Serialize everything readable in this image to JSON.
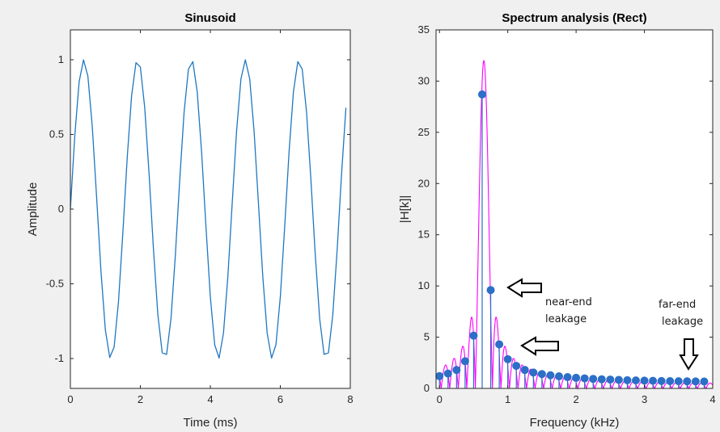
{
  "colors": {
    "figure_bg": "#f0f0f0",
    "axes_bg": "#ffffff",
    "axis": "#262626",
    "sinusoid_line": "#1f77c0",
    "dtft_curve": "#ff00ff",
    "dft_points": "#2c6fc7"
  },
  "chart_data": [
    {
      "type": "line",
      "title": "Sinusoid",
      "xlabel": "Time (ms)",
      "ylabel": "Amplitude",
      "xlim": [
        0,
        8
      ],
      "ylim": [
        -1.2,
        1.2
      ],
      "xticks": [
        0,
        2,
        4,
        6,
        8
      ],
      "xtick_labels": [
        "0",
        "2",
        "4",
        "6",
        "8"
      ],
      "yticks": [
        -1,
        -0.5,
        0,
        0.5,
        1
      ],
      "ytick_labels": [
        "-1",
        "-0.5",
        "0",
        "0.5",
        "1"
      ],
      "grid": false,
      "series": [
        {
          "signal": "sine",
          "frequency_khz": 0.65,
          "amplitude": 1,
          "sample_spacing_ms": 0.125,
          "x_end_ms": 7.875
        }
      ]
    },
    {
      "type": "line",
      "title": "Spectrum analysis (Rect)",
      "xlabel": "Frequency (kHz)",
      "ylabel": "|H[k]|",
      "xlim": [
        -0.05,
        4.0
      ],
      "ylim": [
        0,
        35
      ],
      "xticks": [
        0,
        1,
        2,
        3,
        4
      ],
      "xtick_labels": [
        "0",
        "1",
        "2",
        "3",
        "4"
      ],
      "yticks": [
        0,
        5,
        10,
        15,
        20,
        25,
        30,
        35
      ],
      "ytick_labels": [
        "0",
        "5",
        "10",
        "15",
        "20",
        "25",
        "30",
        "35"
      ],
      "grid": false,
      "series": [
        {
          "kind": "dtft_curve",
          "window": "rectangular",
          "length": 64,
          "center_khz": 0.65,
          "peak": 32,
          "x_range_khz": [
            0,
            4
          ]
        },
        {
          "kind": "dft_points",
          "x": [
            0,
            0.125,
            0.25,
            0.375,
            0.5,
            0.625,
            0.75,
            0.875,
            1.0,
            1.125,
            1.25,
            1.375,
            1.5,
            1.625,
            1.75,
            1.875,
            2.0,
            2.125,
            2.25,
            2.375,
            2.5,
            2.625,
            2.75,
            2.875,
            3.0,
            3.125,
            3.25,
            3.375,
            3.5,
            3.625,
            3.75,
            3.875
          ],
          "y": [
            1.2,
            1.45,
            1.8,
            2.65,
            5.15,
            28.7,
            9.6,
            4.3,
            2.85,
            2.2,
            1.8,
            1.55,
            1.4,
            1.28,
            1.18,
            1.1,
            1.03,
            0.98,
            0.93,
            0.89,
            0.86,
            0.83,
            0.8,
            0.78,
            0.76,
            0.74,
            0.72,
            0.71,
            0.7,
            0.69,
            0.68,
            0.67
          ]
        }
      ],
      "annotations": [
        {
          "lines": [
            "near-end",
            "leakage"
          ],
          "arrow": "left",
          "target": [
            0.75,
            9.6
          ]
        },
        {
          "lines": [
            "",
            ""
          ],
          "arrow": "left",
          "target": [
            0.875,
            4.3
          ]
        },
        {
          "lines": [
            "far-end",
            "leakage"
          ],
          "arrow": "down",
          "target": [
            3.75,
            0.68
          ]
        }
      ]
    }
  ]
}
